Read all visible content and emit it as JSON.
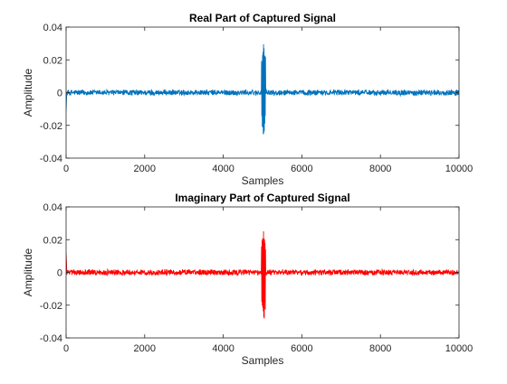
{
  "chart_data": [
    {
      "type": "line",
      "title": "Real Part of Captured Signal",
      "xlabel": "Samples",
      "ylabel": "Amplitude",
      "xlim": [
        0,
        10000
      ],
      "ylim": [
        -0.04,
        0.04
      ],
      "xticks": [
        0,
        2000,
        4000,
        6000,
        8000,
        10000
      ],
      "xtick_labels": [
        "0",
        "2000",
        "4000",
        "6000",
        "8000",
        "10000"
      ],
      "yticks": [
        -0.04,
        -0.02,
        0,
        0.02,
        0.04
      ],
      "ytick_labels": [
        "-0.04",
        "-0.02",
        "0",
        "0.02",
        "0.04"
      ],
      "grid": false,
      "series": [
        {
          "color": "#0072BD",
          "noise_amplitude": 0.002,
          "burst": {
            "start": 4970,
            "end": 5080,
            "max": 0.032,
            "min": -0.027
          },
          "x": [
            0,
            1000,
            2000,
            3000,
            4000,
            4970,
            5000,
            5030,
            5080,
            6000,
            7000,
            8000,
            9000,
            10000
          ],
          "y": [
            0,
            0,
            0,
            0,
            0,
            0,
            0.03,
            -0.026,
            0,
            0,
            0,
            0,
            0,
            0
          ]
        }
      ]
    },
    {
      "type": "line",
      "title": "Imaginary Part of Captured Signal",
      "xlabel": "Samples",
      "ylabel": "Amplitude",
      "xlim": [
        0,
        10000
      ],
      "ylim": [
        -0.04,
        0.04
      ],
      "xticks": [
        0,
        2000,
        4000,
        6000,
        8000,
        10000
      ],
      "xtick_labels": [
        "0",
        "2000",
        "4000",
        "6000",
        "8000",
        "10000"
      ],
      "yticks": [
        -0.04,
        -0.02,
        0,
        0.02,
        0.04
      ],
      "ytick_labels": [
        "-0.04",
        "-0.02",
        "0",
        "0.02",
        "0.04"
      ],
      "grid": false,
      "series": [
        {
          "color": "#FF0000",
          "noise_amplitude": 0.002,
          "burst": {
            "start": 4970,
            "end": 5080,
            "max": 0.028,
            "min": -0.032
          },
          "x": [
            0,
            1000,
            2000,
            3000,
            4000,
            4970,
            5000,
            5030,
            5080,
            6000,
            7000,
            8000,
            9000,
            10000
          ],
          "y": [
            0,
            0,
            0,
            0,
            0,
            0,
            0.027,
            -0.031,
            0,
            0,
            0,
            0,
            0,
            0
          ]
        }
      ]
    }
  ]
}
